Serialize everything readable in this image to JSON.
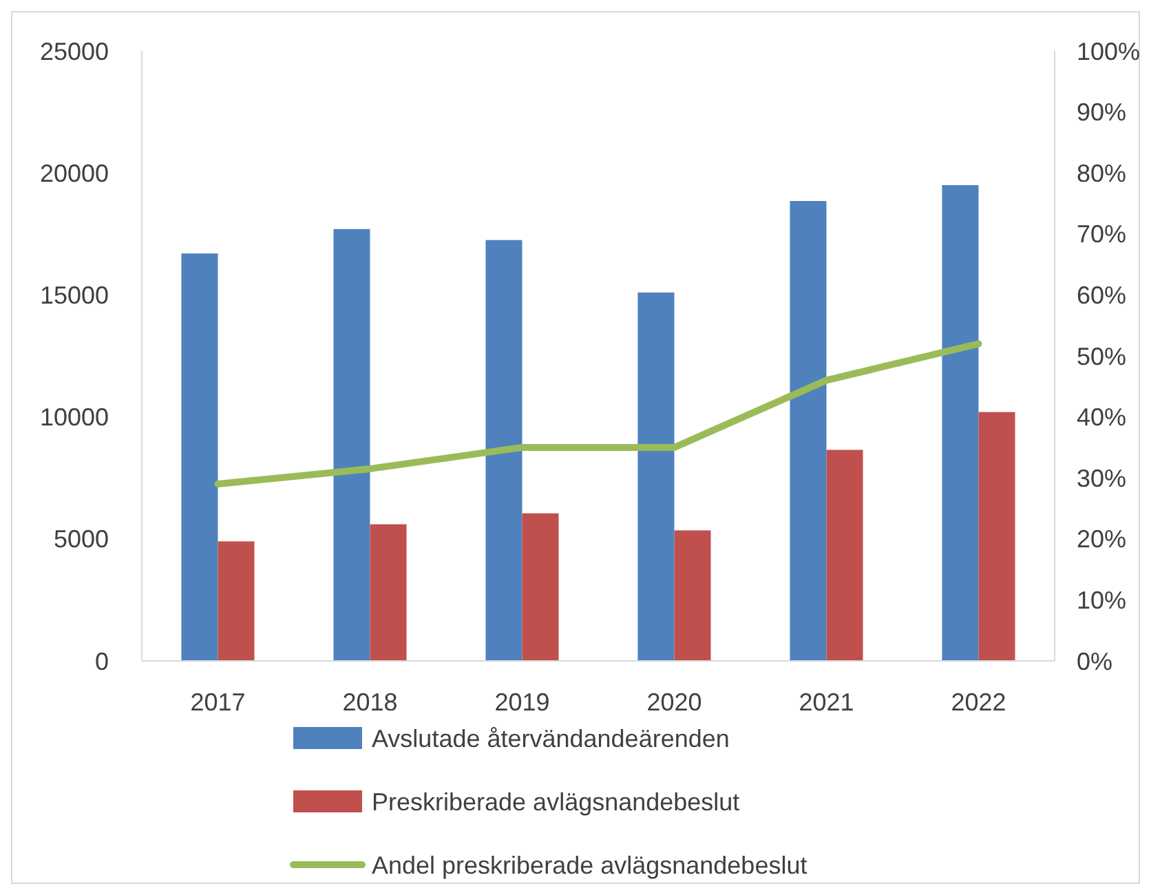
{
  "chart_data": {
    "type": "bar",
    "categories": [
      "2017",
      "2018",
      "2019",
      "2020",
      "2021",
      "2022"
    ],
    "series": [
      {
        "name": "Avslutade återvändandeärenden",
        "color": "#4f81bd",
        "values": [
          16700,
          17700,
          17250,
          15100,
          18850,
          19500
        ]
      },
      {
        "name": "Preskriberade avlägsnandebeslut",
        "color": "#c0504d",
        "values": [
          4900,
          5600,
          6050,
          5350,
          8650,
          10200
        ]
      },
      {
        "name": "Andel preskriberade avlägsnandebeslut",
        "type": "line",
        "axis": "y2",
        "color": "#9bbb59",
        "values": [
          29,
          31.5,
          35,
          35,
          46,
          52
        ]
      }
    ],
    "ylim": [
      0,
      25000
    ],
    "yticks": [
      0,
      5000,
      10000,
      15000,
      20000,
      25000
    ],
    "y2lim": [
      0,
      100
    ],
    "y2ticks": [
      {
        "value": 0,
        "label": "0%"
      },
      {
        "value": 10,
        "label": "10%"
      },
      {
        "value": 20,
        "label": "20%"
      },
      {
        "value": 30,
        "label": "30%"
      },
      {
        "value": 40,
        "label": "40%"
      },
      {
        "value": 50,
        "label": "50%"
      },
      {
        "value": 60,
        "label": "60%"
      },
      {
        "value": 70,
        "label": "70%"
      },
      {
        "value": 80,
        "label": "80%"
      },
      {
        "value": 90,
        "label": "90%"
      },
      {
        "value": 100,
        "label": "100%"
      }
    ],
    "grid": false,
    "legend": "bottom",
    "marker": "none",
    "line_style": "solid"
  }
}
